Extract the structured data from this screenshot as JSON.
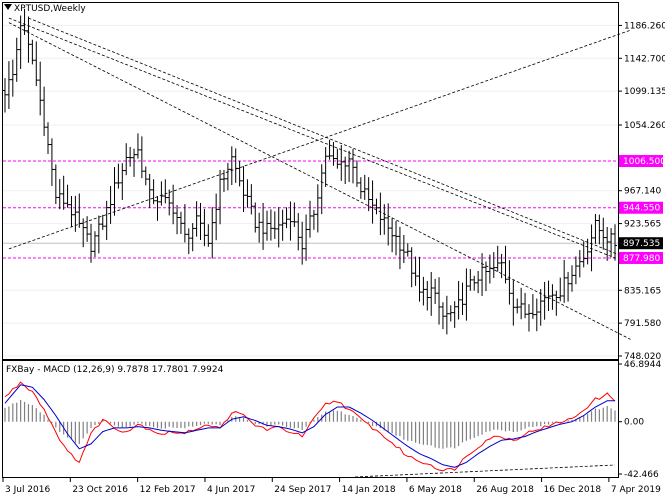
{
  "header": {
    "symbol_label": "XPTUSD,Weekly"
  },
  "indicator": {
    "label": "FXBay - MACD (12,26,9) 9.7878 17.7801 7.9924"
  },
  "colors": {
    "bull_bar": "#000000",
    "bear_bar": "#000000",
    "level_line": "#ff00ff",
    "level_fill": "#ff00ff",
    "price_tag": "#000000",
    "macd_line": "#ff0000",
    "signal_line": "#0000cc",
    "histogram": "#808080",
    "trend_line": "#000000"
  },
  "chart_data": [
    {
      "type": "ohlc",
      "y_ticks": [
        "1186.260",
        "1142.700",
        "1099.135",
        "1054.260",
        "967.140",
        "923.565",
        "835.165",
        "791.580",
        "748.020"
      ],
      "ylim": [
        748.02,
        1212
      ],
      "x_ticks": [
        "3 Jul 2016",
        "23 Oct 2016",
        "12 Feb 2017",
        "4 Jun 2017",
        "24 Sep 2017",
        "14 Jan 2018",
        "6 May 2018",
        "26 Aug 2018",
        "16 Dec 2018",
        "7 Apr 2019"
      ],
      "levels": [
        {
          "label": "1006.500",
          "value": 1006.5
        },
        {
          "label": "944.550",
          "value": 944.55
        },
        {
          "label": "877.980",
          "value": 877.98
        }
      ],
      "current_price": {
        "label": "897.535",
        "value": 897.535
      },
      "trend_lines": [
        {
          "from": [
            1,
            1196
          ],
          "to": [
            156,
            878
          ]
        },
        {
          "from": [
            1,
            1190
          ],
          "to": [
            160,
            770
          ]
        },
        {
          "from": [
            1,
            890
          ],
          "to": [
            160,
            1180
          ]
        },
        {
          "from": [
            6,
            1196
          ],
          "to": [
            160,
            876
          ]
        }
      ],
      "close_anchors": [
        [
          0,
          1100
        ],
        [
          2,
          1120
        ],
        [
          4,
          1190
        ],
        [
          7,
          1140
        ],
        [
          10,
          1060
        ],
        [
          13,
          960
        ],
        [
          16,
          950
        ],
        [
          19,
          920
        ],
        [
          22,
          895
        ],
        [
          25,
          925
        ],
        [
          28,
          970
        ],
        [
          31,
          1010
        ],
        [
          34,
          1020
        ],
        [
          37,
          960
        ],
        [
          40,
          955
        ],
        [
          43,
          945
        ],
        [
          46,
          905
        ],
        [
          49,
          925
        ],
        [
          52,
          900
        ],
        [
          55,
          975
        ],
        [
          58,
          1010
        ],
        [
          61,
          965
        ],
        [
          64,
          925
        ],
        [
          67,
          915
        ],
        [
          70,
          920
        ],
        [
          73,
          935
        ],
        [
          76,
          895
        ],
        [
          79,
          940
        ],
        [
          82,
          1015
        ],
        [
          85,
          1000
        ],
        [
          88,
          1010
        ],
        [
          91,
          970
        ],
        [
          94,
          945
        ],
        [
          97,
          925
        ],
        [
          100,
          905
        ],
        [
          103,
          880
        ],
        [
          106,
          830
        ],
        [
          109,
          835
        ],
        [
          112,
          800
        ],
        [
          115,
          805
        ],
        [
          118,
          835
        ],
        [
          121,
          855
        ],
        [
          124,
          860
        ],
        [
          127,
          870
        ],
        [
          130,
          820
        ],
        [
          133,
          805
        ],
        [
          136,
          815
        ],
        [
          139,
          830
        ],
        [
          142,
          835
        ],
        [
          145,
          860
        ],
        [
          148,
          880
        ],
        [
          151,
          920
        ],
        [
          154,
          905
        ],
        [
          156,
          897.5
        ]
      ]
    },
    {
      "type": "macd",
      "y_ticks": [
        "46.8944",
        "0.00",
        "-42.466"
      ],
      "ylim": [
        -42.466,
        46.8944
      ],
      "macd_anchors": [
        [
          0,
          20
        ],
        [
          4,
          32
        ],
        [
          7,
          25
        ],
        [
          10,
          10
        ],
        [
          13,
          -8
        ],
        [
          16,
          -25
        ],
        [
          19,
          -32
        ],
        [
          22,
          -10
        ],
        [
          25,
          2
        ],
        [
          28,
          -5
        ],
        [
          31,
          -8
        ],
        [
          34,
          -2
        ],
        [
          37,
          -6
        ],
        [
          40,
          -10
        ],
        [
          43,
          -8
        ],
        [
          46,
          -10
        ],
        [
          49,
          -5
        ],
        [
          52,
          -2
        ],
        [
          55,
          -6
        ],
        [
          58,
          8
        ],
        [
          61,
          5
        ],
        [
          64,
          -3
        ],
        [
          67,
          -6
        ],
        [
          70,
          -5
        ],
        [
          73,
          -8
        ],
        [
          76,
          -12
        ],
        [
          79,
          2
        ],
        [
          82,
          14
        ],
        [
          85,
          17
        ],
        [
          88,
          10
        ],
        [
          91,
          2
        ],
        [
          94,
          -5
        ],
        [
          97,
          -12
        ],
        [
          100,
          -20
        ],
        [
          103,
          -28
        ],
        [
          106,
          -32
        ],
        [
          109,
          -35
        ],
        [
          112,
          -40
        ],
        [
          115,
          -38
        ],
        [
          118,
          -28
        ],
        [
          121,
          -20
        ],
        [
          124,
          -13
        ],
        [
          127,
          -12
        ],
        [
          130,
          -15
        ],
        [
          133,
          -10
        ],
        [
          136,
          -6
        ],
        [
          139,
          -4
        ],
        [
          142,
          0
        ],
        [
          145,
          2
        ],
        [
          148,
          10
        ],
        [
          151,
          18
        ],
        [
          154,
          22
        ],
        [
          156,
          18
        ]
      ],
      "signal_anchors": [
        [
          0,
          15
        ],
        [
          4,
          30
        ],
        [
          7,
          28
        ],
        [
          10,
          18
        ],
        [
          13,
          5
        ],
        [
          16,
          -10
        ],
        [
          19,
          -22
        ],
        [
          22,
          -18
        ],
        [
          25,
          -8
        ],
        [
          28,
          -5
        ],
        [
          31,
          -5
        ],
        [
          34,
          -4
        ],
        [
          37,
          -5
        ],
        [
          40,
          -7
        ],
        [
          43,
          -8
        ],
        [
          46,
          -9
        ],
        [
          49,
          -7
        ],
        [
          52,
          -5
        ],
        [
          55,
          -5
        ],
        [
          58,
          2
        ],
        [
          61,
          4
        ],
        [
          64,
          1
        ],
        [
          67,
          -3
        ],
        [
          70,
          -4
        ],
        [
          73,
          -6
        ],
        [
          76,
          -9
        ],
        [
          79,
          -4
        ],
        [
          82,
          6
        ],
        [
          85,
          12
        ],
        [
          88,
          12
        ],
        [
          91,
          7
        ],
        [
          94,
          1
        ],
        [
          97,
          -6
        ],
        [
          100,
          -13
        ],
        [
          103,
          -20
        ],
        [
          106,
          -26
        ],
        [
          109,
          -30
        ],
        [
          112,
          -35
        ],
        [
          115,
          -37
        ],
        [
          118,
          -33
        ],
        [
          121,
          -26
        ],
        [
          124,
          -20
        ],
        [
          127,
          -15
        ],
        [
          130,
          -14
        ],
        [
          133,
          -12
        ],
        [
          136,
          -8
        ],
        [
          139,
          -5
        ],
        [
          142,
          -2
        ],
        [
          145,
          0
        ],
        [
          148,
          5
        ],
        [
          151,
          12
        ],
        [
          154,
          17
        ],
        [
          156,
          17
        ]
      ]
    }
  ]
}
